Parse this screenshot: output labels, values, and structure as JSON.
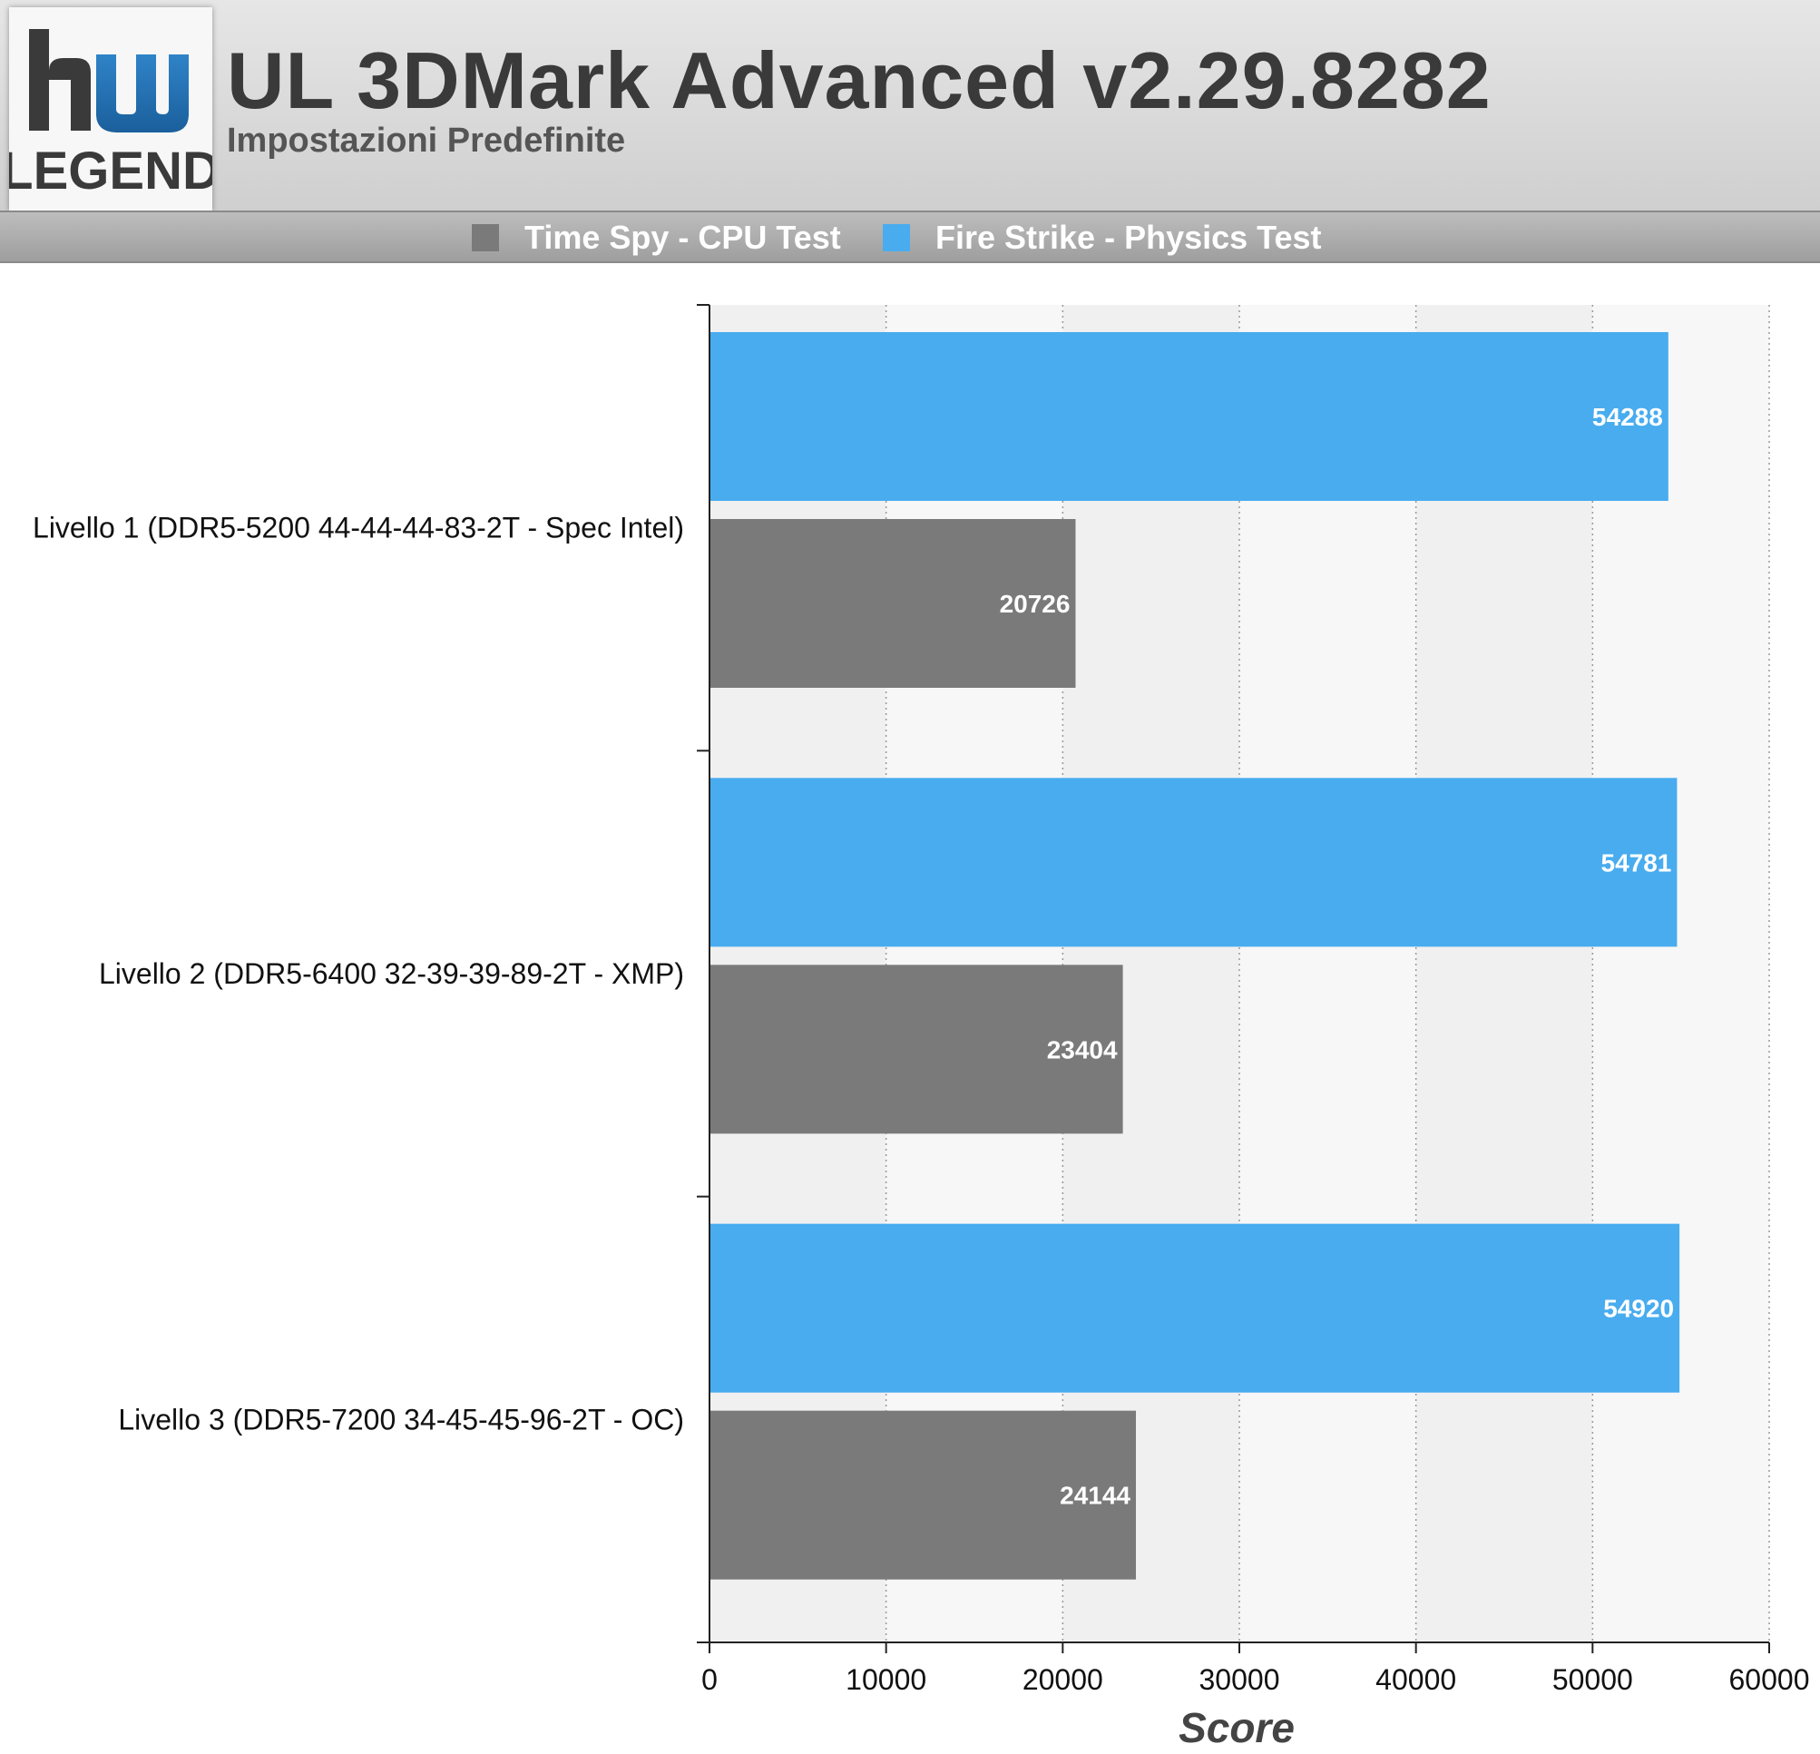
{
  "header": {
    "logo_text_top": "hw",
    "logo_text_bottom": "LEGEND",
    "title": "UL 3DMark Advanced v2.29.8282",
    "subtitle": "Impostazioni Predefinite"
  },
  "colors": {
    "time_spy": "#7a7a7a",
    "fire_strike": "#48acef",
    "plot_bg": "#f2f2f2"
  },
  "chart_data": {
    "type": "bar",
    "orientation": "horizontal",
    "categories": [
      "Livello 1 (DDR5-5200 44-44-44-83-2T - Spec Intel)",
      "Livello 2 (DDR5-6400 32-39-39-89-2T - XMP)",
      "Livello 3 (DDR5-7200 34-45-45-96-2T - OC)"
    ],
    "series": [
      {
        "name": "Time Spy - CPU Test",
        "color": "#7a7a7a",
        "values": [
          20726,
          23404,
          24144
        ]
      },
      {
        "name": "Fire Strike - Physics Test",
        "color": "#48acef",
        "values": [
          54288,
          54781,
          54920
        ]
      }
    ],
    "xlabel": "Score",
    "xlim": [
      0,
      60000
    ],
    "ticks": [
      "0",
      "10000",
      "20000",
      "30000",
      "40000",
      "50000",
      "60000"
    ],
    "grid": true,
    "legend_position": "top"
  }
}
